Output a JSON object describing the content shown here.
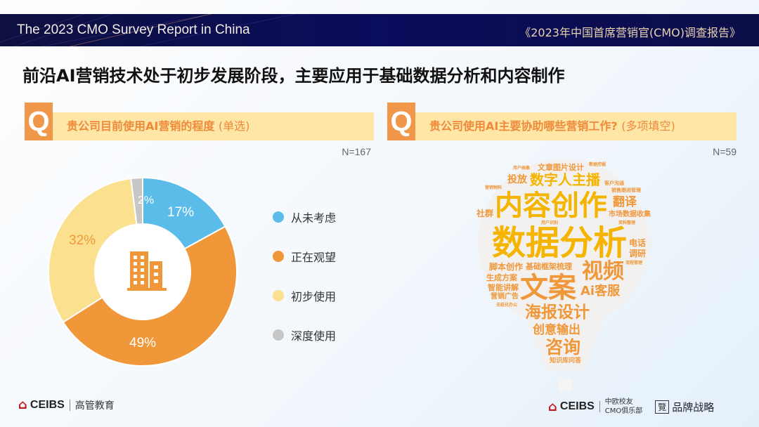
{
  "header": {
    "title_en": "The 2023 CMO Survey Report in China",
    "title_cn": "《2023年中国首席营销官(CMO)调查报告》"
  },
  "headline": "前沿AI营销技术处于初步发展阶段，主要应用于基础数据分析和内容制作",
  "left": {
    "q_label": "Q",
    "question": "贵公司目前使用AI营销的程度",
    "question_type": "(单选)",
    "n": "N=167"
  },
  "right": {
    "q_label": "Q",
    "question": "贵公司使用AI主要协助哪些营销工作?",
    "question_type": "(多项填空)",
    "n": "N=59"
  },
  "chart_data": {
    "type": "pie",
    "categories": [
      "从未考虑",
      "正在观望",
      "初步使用",
      "深度使用"
    ],
    "values": [
      17,
      49,
      32,
      2
    ],
    "labels": [
      "17%",
      "49%",
      "32%",
      "2%"
    ],
    "colors": [
      "#5bbcea",
      "#f0973a",
      "#fbe08f",
      "#c6c6c6"
    ],
    "center_icon": "building-icon",
    "legend_position": "right"
  },
  "wordcloud": [
    "文章图片设计",
    "投放",
    "数字人主播",
    "内容创作",
    "翻译",
    "社群",
    "市场数据收集",
    "数据分析",
    "电话",
    "调研",
    "脚本创作",
    "基础框架梳理",
    "生成方案",
    "视频",
    "智能讲解",
    "营销广告",
    "文案",
    "Ai客服",
    "海报设计",
    "创意输出",
    "咨询",
    "知识库问答",
    "用户画像",
    "数据挖掘",
    "客户沟通",
    "营销物料",
    "销售跟进管理",
    "用户识别",
    "流程管理",
    "无纸化办公",
    "资料整理"
  ],
  "footer": {
    "left_brand": "CEIBS",
    "left_sub": "高管教育",
    "right_brand": "CEIBS",
    "right_sub1": "中欧校友",
    "right_sub2": "CMO俱乐部",
    "partner": "品牌战略"
  },
  "colors": {
    "navy": "#0a0c5c",
    "orange": "#f0973a",
    "gold": "#f5b400",
    "qbar": "#fde6a6"
  }
}
